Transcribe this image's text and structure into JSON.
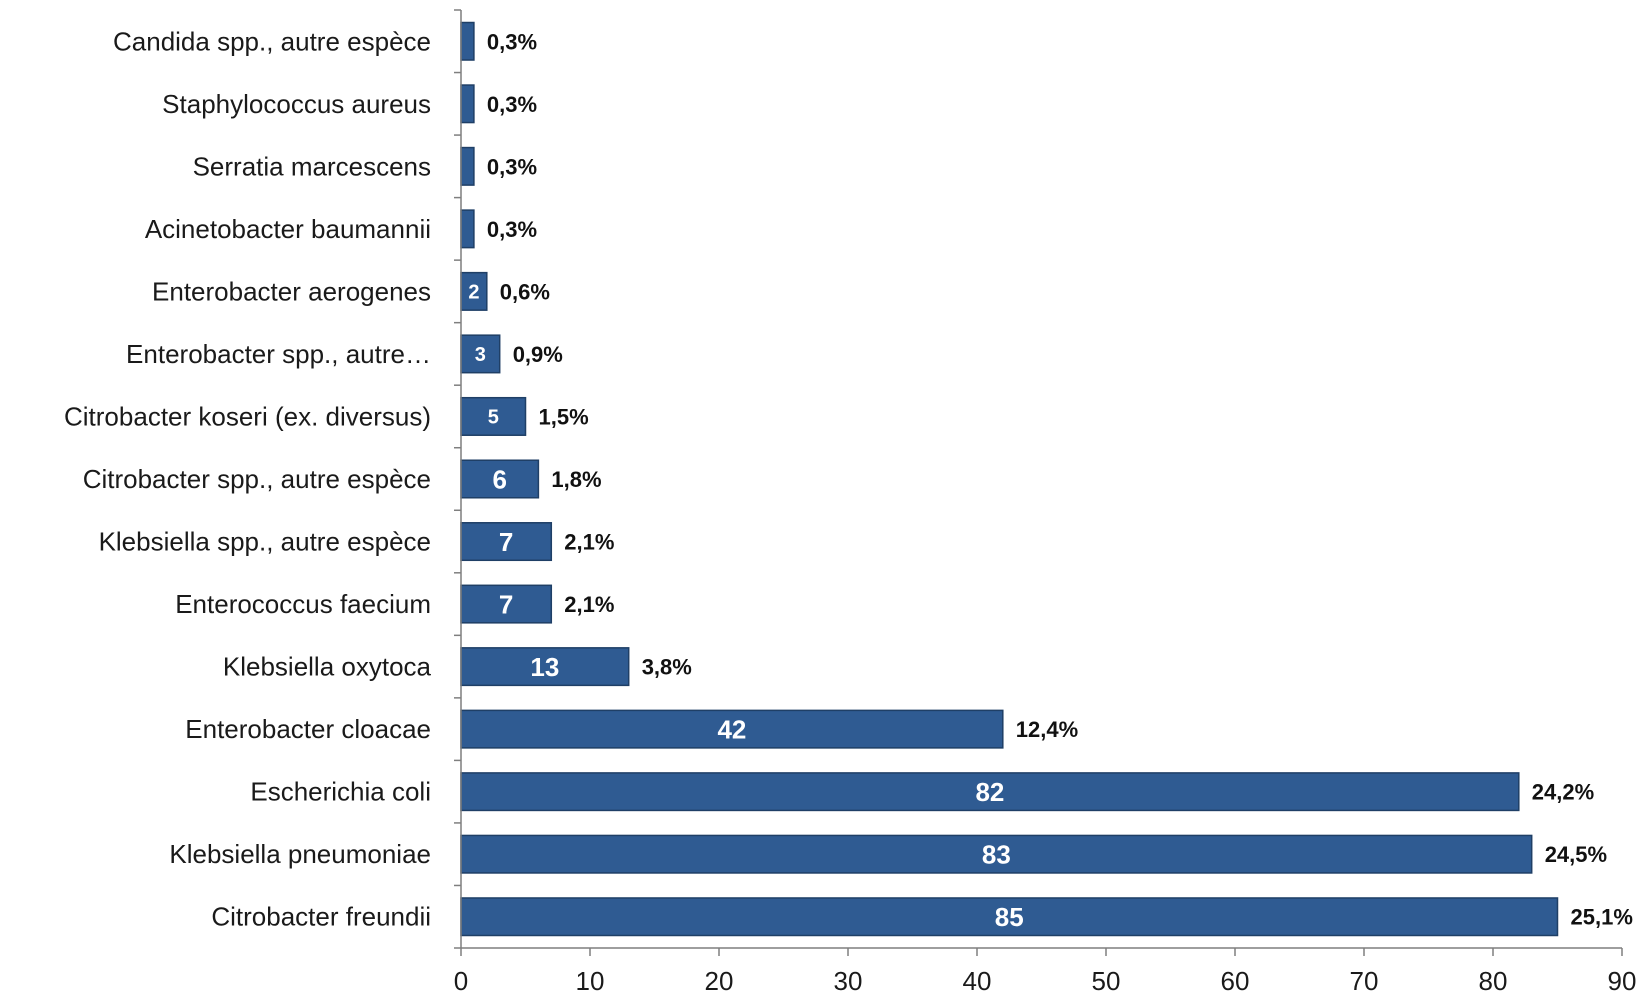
{
  "chart_data": {
    "type": "bar",
    "orientation": "horizontal",
    "categories": [
      "Citrobacter freundii",
      "Klebsiella pneumoniae",
      "Escherichia coli",
      "Enterobacter cloacae",
      "Klebsiella oxytoca",
      "Enterococcus faecium",
      "Klebsiella spp., autre espèce",
      "Citrobacter spp., autre espèce",
      "Citrobacter koseri (ex. diversus)",
      "Enterobacter spp., autre…",
      "Enterobacter aerogenes",
      "Acinetobacter baumannii",
      "Serratia marcescens",
      "Staphylococcus aureus",
      "Candida spp., autre espèce"
    ],
    "values": [
      85,
      83,
      82,
      42,
      13,
      7,
      7,
      6,
      5,
      3,
      2,
      1,
      1,
      1,
      1
    ],
    "value_labels": [
      "85",
      "83",
      "82",
      "42",
      "13",
      "7",
      "7",
      "6",
      "5",
      "3",
      "2",
      "",
      "",
      "",
      ""
    ],
    "percent_labels": [
      "25,1%",
      "24,5%",
      "24,2%",
      "12,4%",
      "3,8%",
      "2,1%",
      "2,1%",
      "1,8%",
      "1,5%",
      "0,9%",
      "0,6%",
      "0,3%",
      "0,3%",
      "0,3%",
      "0,3%"
    ],
    "title": "",
    "xlabel": "",
    "ylabel": "",
    "xlim": [
      0,
      90
    ],
    "xticks": [
      0,
      10,
      20,
      30,
      40,
      50,
      60,
      70,
      80,
      90
    ],
    "grid": false,
    "legend": "none",
    "colors": {
      "bar": "#2f5b92",
      "bar_edge": "#1f3f66",
      "axis": "#7f7f7f"
    }
  }
}
